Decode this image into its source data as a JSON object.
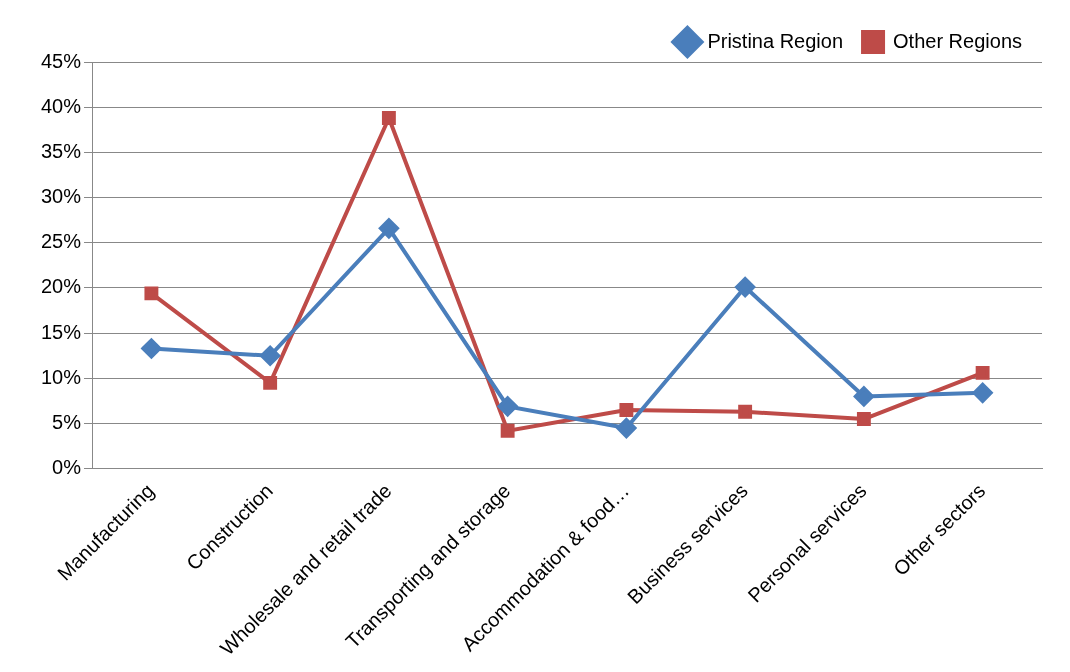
{
  "chart_data": {
    "type": "line",
    "categories": [
      "Manufacturing",
      "Construction",
      "Wholesale and retail trade",
      "Transporting and storage",
      "Accommodation & food…",
      "Business services",
      "Personal services",
      "Other sectors"
    ],
    "series": [
      {
        "name": "Pristina Region",
        "color": "#4a7ebb",
        "marker": "diamond",
        "values": [
          13.3,
          12.5,
          26.6,
          6.9,
          4.5,
          20.1,
          8.0,
          8.4
        ]
      },
      {
        "name": "Other Regions",
        "color": "#be4b48",
        "marker": "square",
        "values": [
          19.4,
          9.5,
          38.8,
          4.2,
          6.5,
          6.3,
          5.5,
          10.6
        ]
      }
    ],
    "ylim": [
      0,
      45
    ],
    "yticks": [
      {
        "value": 0,
        "label": "0%"
      },
      {
        "value": 5,
        "label": "5%"
      },
      {
        "value": 10,
        "label": "10%"
      },
      {
        "value": 15,
        "label": "15%"
      },
      {
        "value": 20,
        "label": "20%"
      },
      {
        "value": 25,
        "label": "25%"
      },
      {
        "value": 30,
        "label": "30%"
      },
      {
        "value": 35,
        "label": "35%"
      },
      {
        "value": 40,
        "label": "40%"
      },
      {
        "value": 45,
        "label": "45%"
      }
    ],
    "grid": "y",
    "legend": "top right",
    "line_style": "solid"
  }
}
